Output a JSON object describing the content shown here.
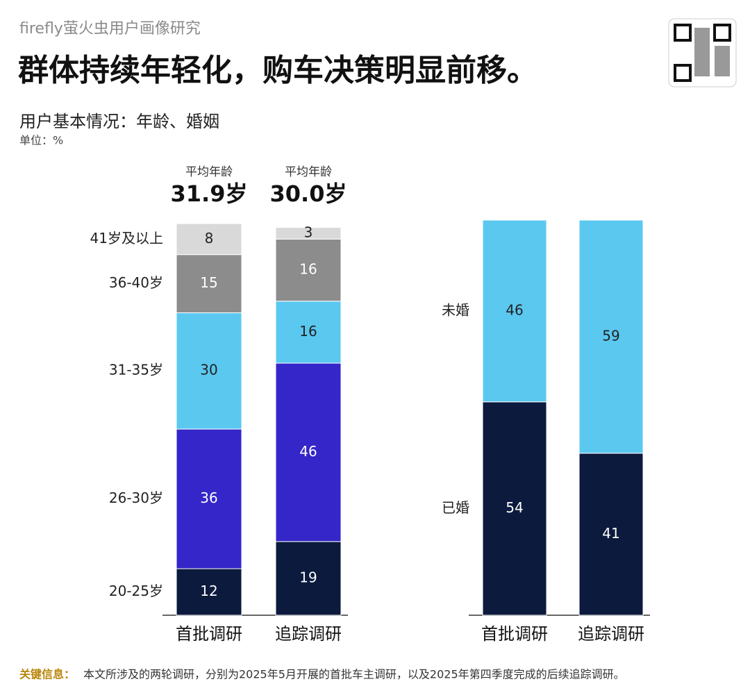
{
  "header": {
    "source": "firefly萤火虫用户画像研究",
    "title": "群体持续年轻化，购车决策明显前移。",
    "subtitle": "用户基本情况：年龄、婚姻",
    "unit": "单位：%"
  },
  "chart_data": [
    {
      "type": "stacked_bar",
      "categories": [
        "首批调研",
        "追踪调研"
      ],
      "series": [
        {
          "name": "20-25岁",
          "color": "#0b1a3d",
          "values": [
            12,
            19
          ]
        },
        {
          "name": "26-30岁",
          "color": "#3426c8",
          "values": [
            36,
            46
          ]
        },
        {
          "name": "31-35岁",
          "color": "#5bc8f0",
          "values": [
            30,
            16
          ]
        },
        {
          "name": "36-40岁",
          "color": "#8c8c8c",
          "values": [
            15,
            16
          ]
        },
        {
          "name": "41岁及以上",
          "color": "#d9d9d9",
          "values": [
            8,
            3
          ]
        }
      ],
      "annotations": [
        {
          "label": "平均年龄",
          "value": 31.9,
          "value_label": "31.9岁"
        },
        {
          "label": "平均年龄",
          "value": 30.0,
          "value_label": "30.0岁"
        }
      ]
    },
    {
      "type": "stacked_bar",
      "categories": [
        "首批调研",
        "追踪调研"
      ],
      "series": [
        {
          "name": "已婚",
          "color": "#0b1a3d",
          "values": [
            54,
            41
          ]
        },
        {
          "name": "未婚",
          "color": "#5bc8f0",
          "values": [
            46,
            59
          ]
        }
      ]
    }
  ],
  "footer": {
    "label": "关键信息：",
    "text": "本文所涉及的两轮调研，分别为2025年5月开展的首批车主调研，以及2025年第四季度完成的后续追踪调研。"
  }
}
